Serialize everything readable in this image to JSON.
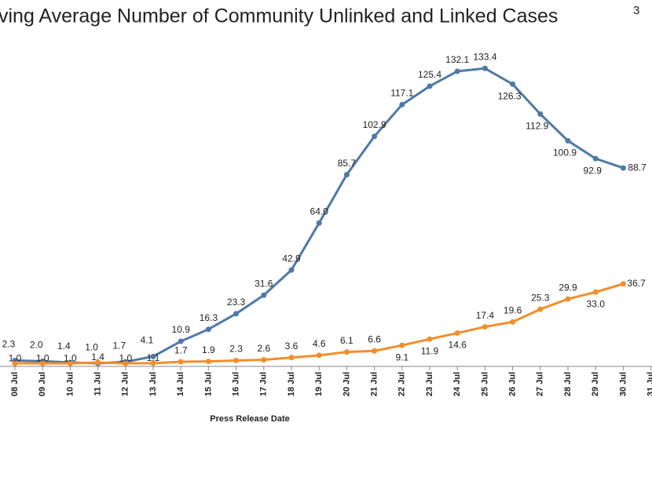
{
  "chart_data": {
    "type": "line",
    "title": "ving Average Number of Community Unlinked and Linked Cases",
    "title_superscript": "3",
    "x_label": "Press Release Date",
    "categories": [
      "08 Jul",
      "09 Jul",
      "10 Jul",
      "11 Jul",
      "12 Jul",
      "13 Jul",
      "14 Jul",
      "15 Jul",
      "16 Jul",
      "17 Jul",
      "18 Jul",
      "19 Jul",
      "20 Jul",
      "21 Jul",
      "22 Jul",
      "23 Jul",
      "24 Jul",
      "25 Jul",
      "26 Jul",
      "27 Jul",
      "28 Jul",
      "29 Jul",
      "30 Jul",
      "31 Jul"
    ],
    "ylim": [
      0,
      150
    ],
    "series": [
      {
        "color": "#4e79a7",
        "values": [
          2.3,
          2.0,
          1.4,
          1.0,
          1.7,
          4.1,
          10.9,
          16.3,
          23.3,
          31.6,
          42.9,
          64.0,
          85.7,
          102.9,
          117.1,
          125.4,
          132.1,
          133.4,
          126.3,
          112.9,
          100.9,
          92.9,
          88.7,
          null
        ],
        "value_labels": [
          "2.3",
          "2.0",
          "1.4",
          "1.0",
          "1.7",
          "4.1",
          "10.9",
          "16.3",
          "23.3",
          "31.6",
          "42.9",
          "64.0",
          "85.7",
          "102.9",
          "117.1",
          "125.4",
          "132.1",
          "133.4",
          "126.3",
          "112.9",
          "100.9",
          "92.9",
          "88.7",
          null
        ]
      },
      {
        "color": "#f28e2b",
        "values": [
          1.0,
          1.0,
          1.0,
          1.4,
          1.0,
          1.1,
          1.7,
          1.9,
          2.3,
          2.6,
          3.6,
          4.6,
          6.1,
          6.6,
          9.1,
          11.9,
          14.6,
          17.4,
          19.6,
          25.3,
          29.9,
          33.0,
          36.7,
          null
        ],
        "value_labels": [
          "1.0",
          "1.0",
          "1.0",
          "1.4",
          "1.0",
          "1.1",
          "1.7",
          "1.9",
          "2.3",
          "2.6",
          "3.6",
          "4.6",
          "6.1",
          "6.6",
          "9.1",
          "11.9",
          "14.6",
          "17.4",
          "19.6",
          "25.3",
          "29.9",
          "33.0",
          "36.7",
          null
        ]
      }
    ]
  }
}
